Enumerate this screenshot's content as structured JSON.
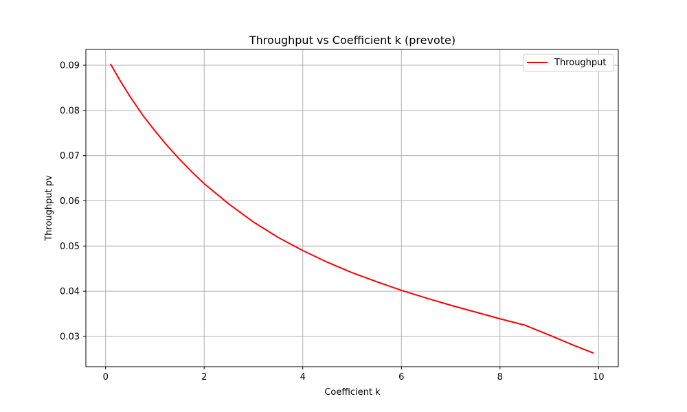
{
  "chart_data": {
    "type": "line",
    "title": "Throughput vs Coefficient k (prevote)",
    "xlabel": "Coefficient k",
    "ylabel": "Throughput pv",
    "xlim": [
      -0.4,
      10.4
    ],
    "ylim": [
      0.0233,
      0.0935
    ],
    "x_ticks": [
      0,
      2,
      4,
      6,
      8,
      10
    ],
    "x_tick_labels": [
      "0",
      "2",
      "4",
      "6",
      "8",
      "10"
    ],
    "y_ticks": [
      0.03,
      0.04,
      0.05,
      0.06,
      0.07,
      0.08,
      0.09
    ],
    "y_tick_labels": [
      "0.03",
      "0.04",
      "0.05",
      "0.06",
      "0.07",
      "0.08",
      "0.09"
    ],
    "grid": true,
    "legend_position": "top-right",
    "series": [
      {
        "name": "Throughput",
        "color": "#ff0000",
        "x": [
          0.1,
          0.3,
          0.5,
          0.75,
          1.0,
          1.25,
          1.5,
          1.75,
          2.0,
          2.5,
          3.0,
          3.5,
          4.0,
          4.5,
          5.0,
          5.5,
          6.0,
          6.5,
          7.0,
          7.5,
          8.0,
          8.5,
          9.0,
          9.5,
          9.9
        ],
        "y": [
          0.0903,
          0.0865,
          0.083,
          0.079,
          0.0755,
          0.0722,
          0.0692,
          0.0664,
          0.0638,
          0.0593,
          0.0553,
          0.0519,
          0.049,
          0.0464,
          0.0441,
          0.0421,
          0.0402,
          0.0385,
          0.0369,
          0.0354,
          0.0339,
          0.0325,
          0.0303,
          0.028,
          0.0263
        ]
      }
    ]
  }
}
